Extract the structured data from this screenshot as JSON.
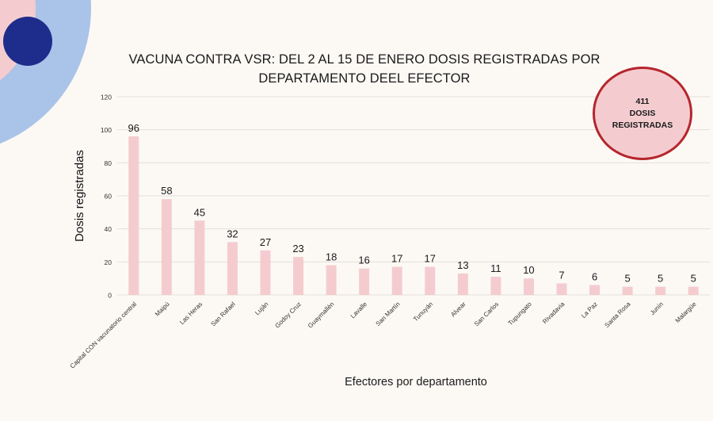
{
  "decoration": {
    "outer_ring_color": "#aac3e8",
    "inner_ring_color": "#f4ccd0",
    "dot_color": "#1e2d8c"
  },
  "title_line1": "VACUNA CONTRA VSR: DEL 2 AL 15 DE ENERO DOSIS REGISTRADAS POR",
  "title_line2": "DEPARTAMENTO DEEL EFECTOR",
  "badge": {
    "value": "411",
    "line1": "DOSIS",
    "line2": "REGISTRADAS"
  },
  "chart_data": {
    "type": "bar",
    "title": "VACUNA CONTRA VSR: DEL 2 AL 15 DE ENERO DOSIS REGISTRADAS POR DEPARTAMENTO DEEL EFECTOR",
    "xlabel": "Efectores por departamento",
    "ylabel": "Dosis registradas",
    "ylim": [
      0,
      120
    ],
    "yticks": [
      0,
      20,
      40,
      60,
      80,
      100,
      120
    ],
    "grid": true,
    "legend": "none",
    "bar_color": "#f4ccd0",
    "categories": [
      "Capital CON vacunatorio central",
      "Maipú",
      "Las Heras",
      "San Rafael",
      "Luján",
      "Godoy Cruz",
      "Guaymallén",
      "Lavalle",
      "San Martín",
      "Tunuyán",
      "Alvear",
      "San Carlos",
      "Tupungato",
      "Rivadavia",
      "La Paz",
      "Santa Rosa",
      "Junín",
      "Malargüe"
    ],
    "values": [
      96,
      58,
      45,
      32,
      27,
      23,
      18,
      16,
      17,
      17,
      13,
      11,
      10,
      7,
      6,
      5,
      5,
      5
    ]
  }
}
